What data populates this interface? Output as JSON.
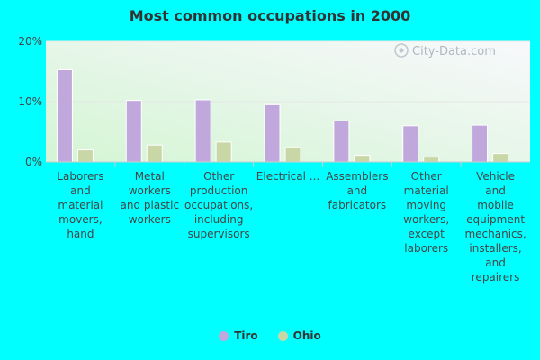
{
  "chart_data": {
    "type": "bar",
    "title": "Most common occupations in 2000",
    "categories": [
      "Laborers and material movers, hand",
      "Metal workers and plastic workers",
      "Other production occupations, including supervisors",
      "Electrical ...",
      "Assemblers and fabricators",
      "Other material moving workers, except laborers",
      "Vehicle and mobile equipment mechanics, installers, and repairers"
    ],
    "category_lines": [
      [
        "Laborers",
        "and",
        "material",
        "movers,",
        "hand"
      ],
      [
        "Metal",
        "workers",
        "and plastic",
        "workers"
      ],
      [
        "Other",
        "production",
        "occupations,",
        "including",
        "supervisors"
      ],
      [
        "Electrical ..."
      ],
      [
        "Assemblers",
        "and",
        "fabricators"
      ],
      [
        "Other",
        "material",
        "moving",
        "workers,",
        "except",
        "laborers"
      ],
      [
        "Vehicle",
        "and",
        "mobile",
        "equipment",
        "mechanics,",
        "installers,",
        "and",
        "repairers"
      ]
    ],
    "series": [
      {
        "name": "Tiro",
        "color": "#c0a8dc",
        "values": [
          15.3,
          10.2,
          10.3,
          9.5,
          6.8,
          6.0,
          6.1
        ]
      },
      {
        "name": "Ohio",
        "color": "#c9d7a6",
        "values": [
          2.0,
          2.8,
          3.3,
          2.4,
          1.1,
          0.8,
          1.4
        ]
      }
    ],
    "yticks": [
      0,
      10,
      20
    ],
    "ytick_labels": [
      "0%",
      "10%",
      "20%"
    ],
    "ylim": [
      0,
      20
    ],
    "xlabel": "",
    "ylabel": "",
    "legend": "bottom-center",
    "grid": true
  },
  "watermark": "City-Data.com"
}
